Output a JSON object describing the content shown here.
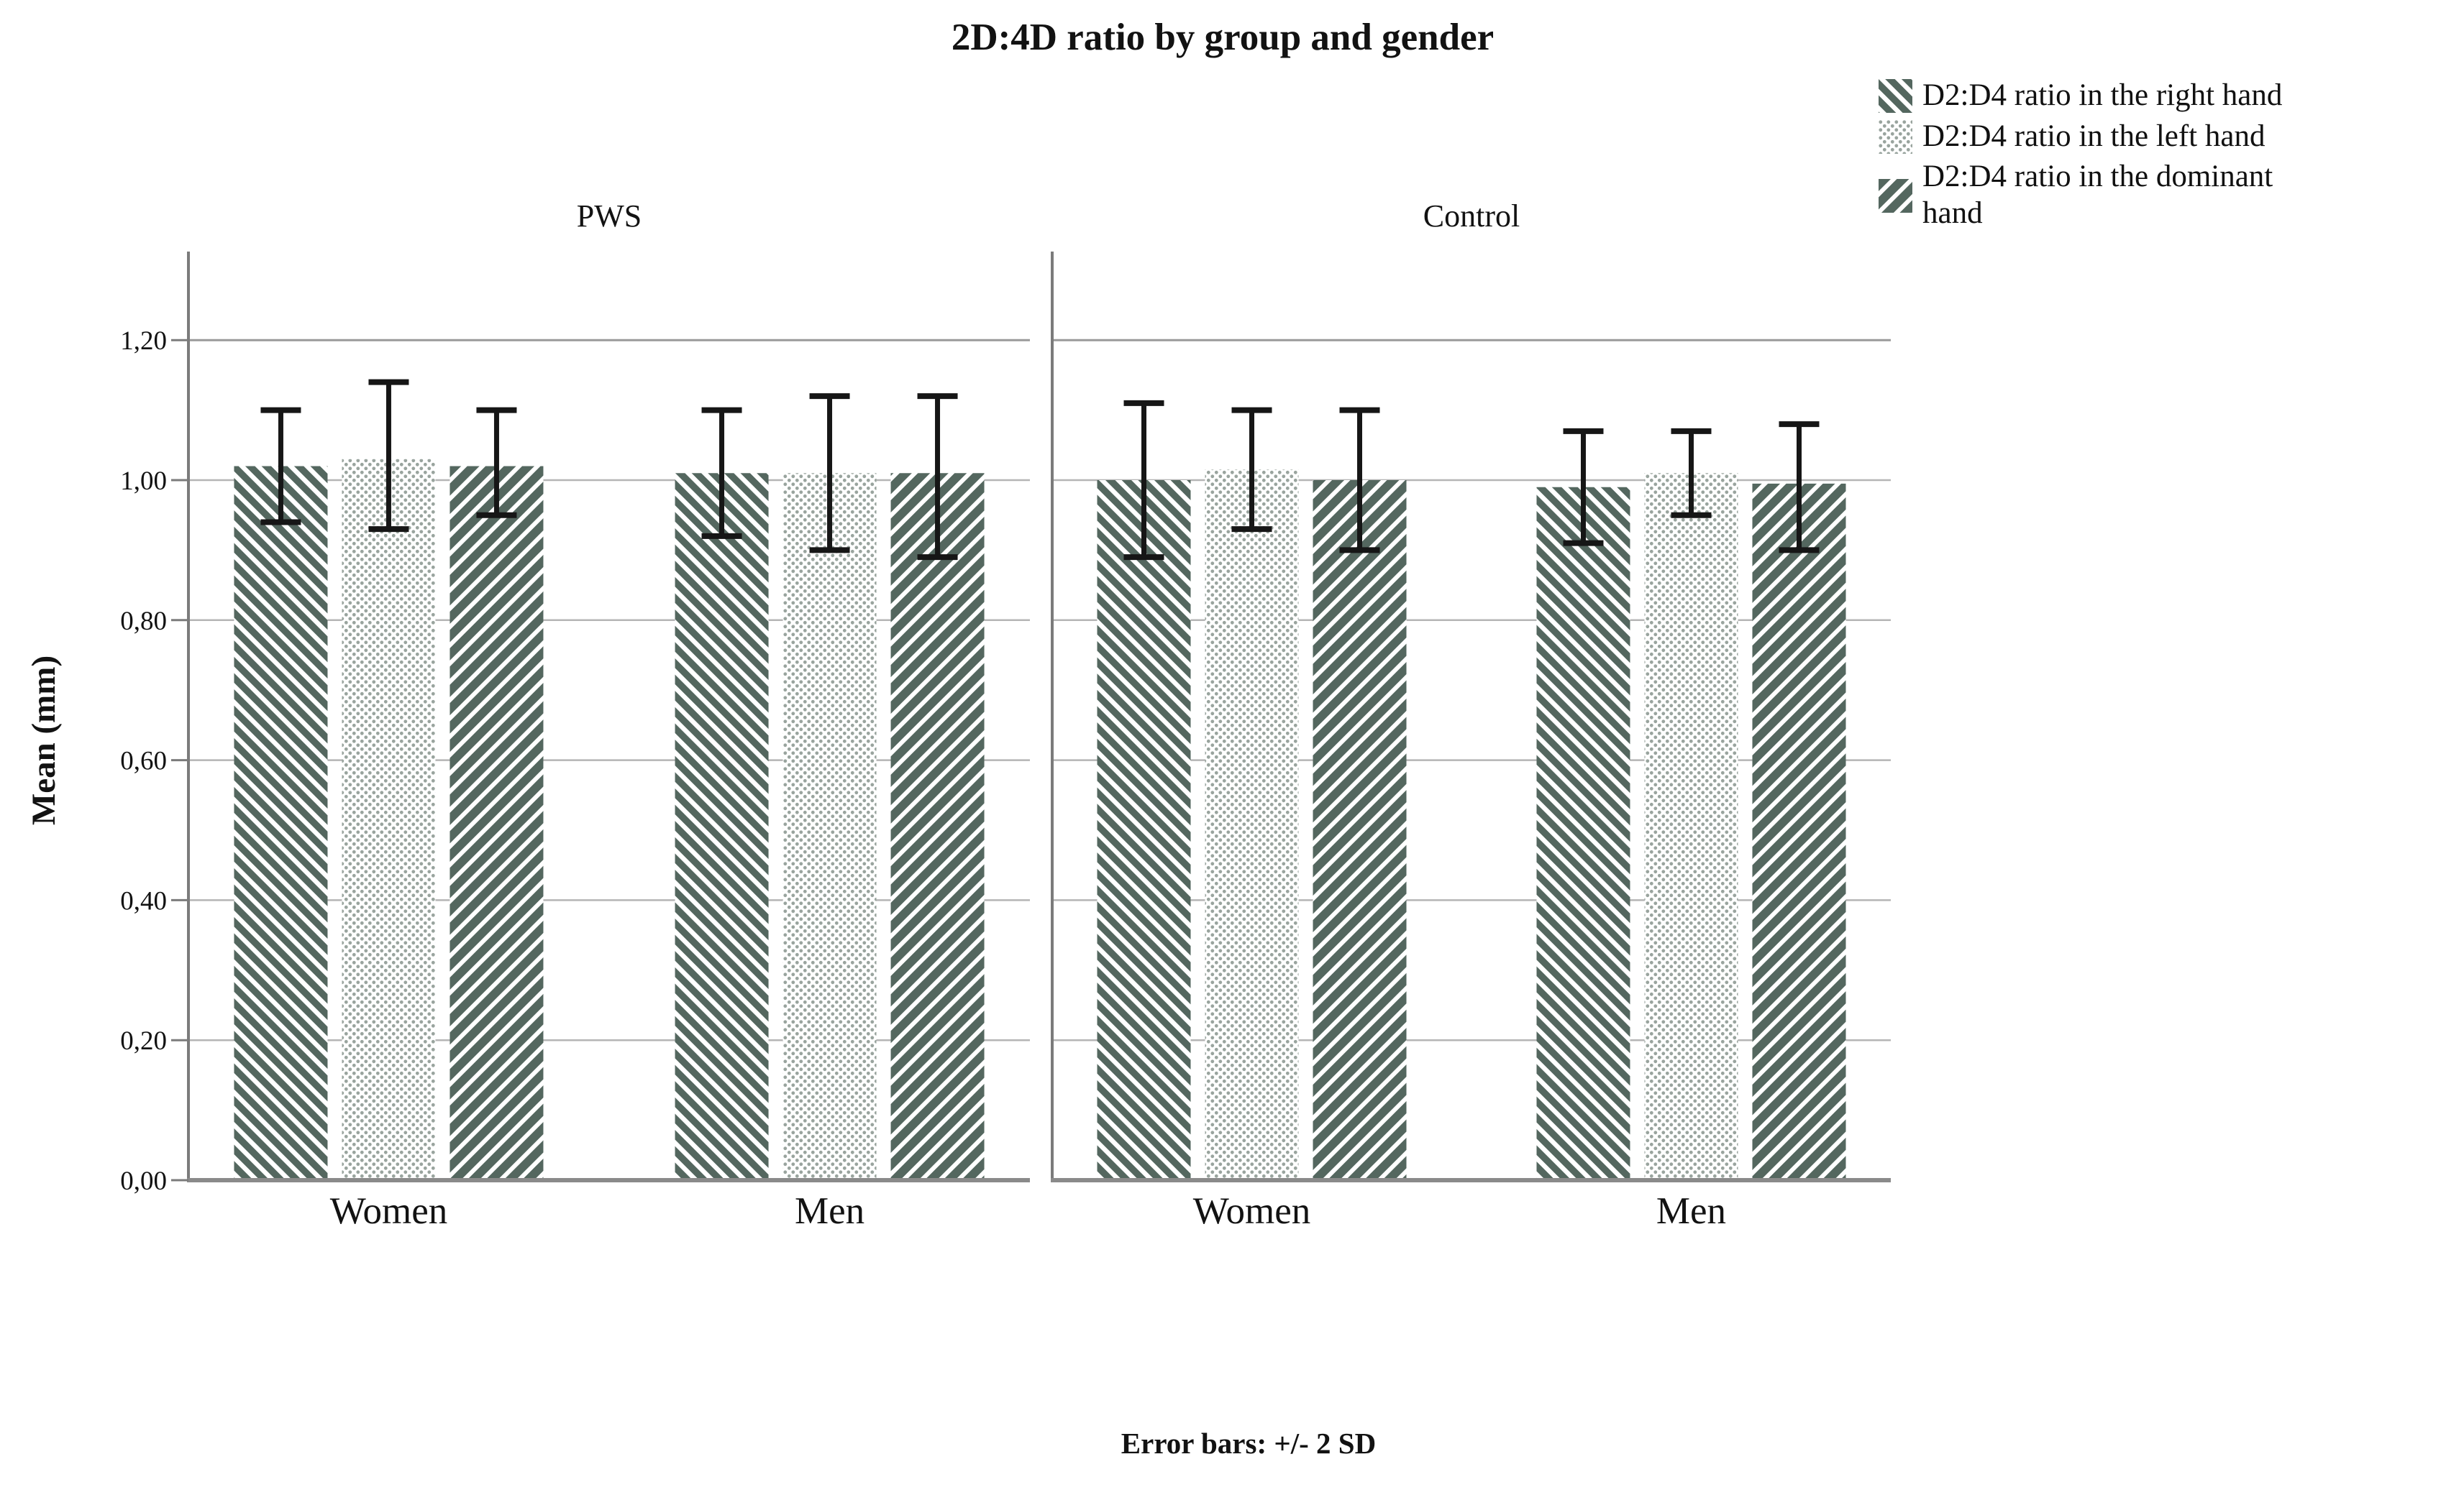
{
  "title": "2D:4D ratio by group and gender",
  "footnote": "Error bars: +/- 2 SD",
  "y_axis": {
    "label": "Mean (mm)",
    "tick_labels": [
      "0,00",
      "0,20",
      "0,40",
      "0,60",
      "0,80",
      "1,00",
      "1,20"
    ]
  },
  "legend": {
    "items": [
      {
        "name": "D2:D4 ratio in the right hand",
        "lines": [
          "D2:D4 ratio in the right hand"
        ],
        "pattern": "stripes-down"
      },
      {
        "name": "D2:D4 ratio in the left hand",
        "lines": [
          "D2:D4 ratio in the left hand"
        ],
        "pattern": "dots"
      },
      {
        "name": "D2:D4 ratio in the dominant hand",
        "lines": [
          "D2:D4 ratio in the dominant",
          "hand"
        ],
        "pattern": "stripes-up"
      }
    ]
  },
  "colors": {
    "stripe_green": "#54675f",
    "dot_gray": "#99a49e",
    "grid": "#b5b5b5",
    "grid_top": "#9a9a9a",
    "axis": "#7b7b7b",
    "baseline": "#8a8a8a",
    "error_bar": "#161616",
    "text": "#121212"
  },
  "chart_data": {
    "type": "bar",
    "title": "2D:4D ratio by group and gender",
    "xlabel": "",
    "ylabel": "Mean (mm)",
    "ylim": [
      0,
      1.33
    ],
    "yticks": [
      0.0,
      0.2,
      0.4,
      0.6,
      0.8,
      1.0,
      1.2
    ],
    "ytick_labels": [
      "0,00",
      "0,20",
      "0,40",
      "0,60",
      "0,80",
      "1,00",
      "1,20"
    ],
    "grid": true,
    "legend_position": "top-right",
    "error_bars_note": "Error bars: +/- 2 SD",
    "panels": [
      {
        "label": "PWS",
        "categories": [
          "Women",
          "Men"
        ],
        "series": [
          {
            "name": "D2:D4 ratio in the right hand",
            "pattern": "stripes-down",
            "means": [
              1.02,
              1.01
            ],
            "err_low": [
              0.94,
              0.92
            ],
            "err_high": [
              1.1,
              1.1
            ]
          },
          {
            "name": "D2:D4 ratio in the left hand",
            "pattern": "dots",
            "means": [
              1.03,
              1.01
            ],
            "err_low": [
              0.93,
              0.9
            ],
            "err_high": [
              1.14,
              1.12
            ]
          },
          {
            "name": "D2:D4 ratio in the dominant hand",
            "pattern": "stripes-up",
            "means": [
              1.02,
              1.01
            ],
            "err_low": [
              0.95,
              0.89
            ],
            "err_high": [
              1.1,
              1.12
            ]
          }
        ]
      },
      {
        "label": "Control",
        "categories": [
          "Women",
          "Men"
        ],
        "series": [
          {
            "name": "D2:D4 ratio in the right hand",
            "pattern": "stripes-down",
            "means": [
              1.0,
              0.99
            ],
            "err_low": [
              0.89,
              0.91
            ],
            "err_high": [
              1.11,
              1.07
            ]
          },
          {
            "name": "D2:D4 ratio in the left hand",
            "pattern": "dots",
            "means": [
              1.015,
              1.01
            ],
            "err_low": [
              0.93,
              0.95
            ],
            "err_high": [
              1.1,
              1.07
            ]
          },
          {
            "name": "D2:D4 ratio in the dominant hand",
            "pattern": "stripes-up",
            "means": [
              1.0,
              0.995
            ],
            "err_low": [
              0.9,
              0.9
            ],
            "err_high": [
              1.1,
              1.08
            ]
          }
        ]
      }
    ]
  }
}
